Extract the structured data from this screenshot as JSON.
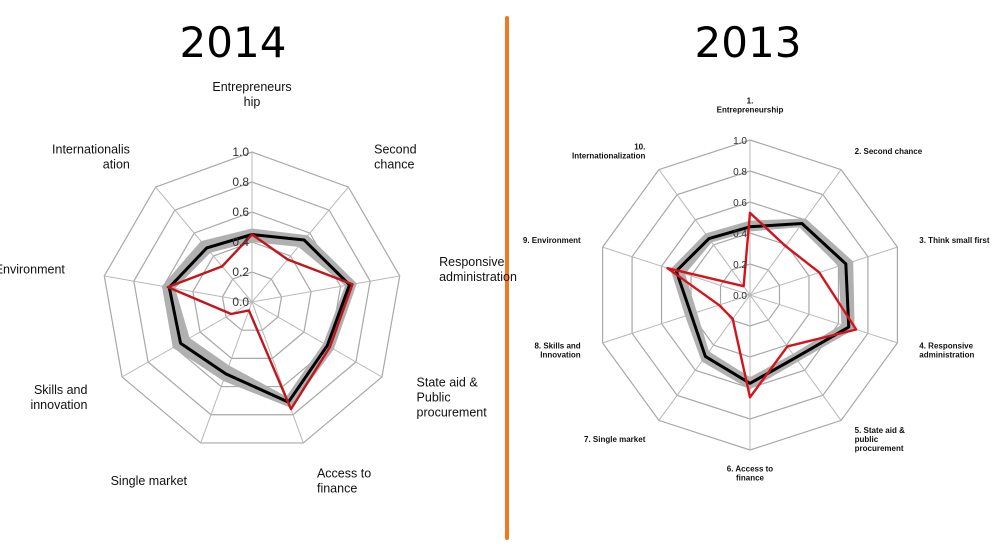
{
  "chart_data": [
    {
      "type": "radar",
      "title": "2014",
      "ticks": [
        "0.0",
        "0.2",
        "0.4",
        "0.6",
        "0.8",
        "1.0"
      ],
      "rlim": [
        0,
        1
      ],
      "axes": [
        [
          "Entrepreneurs",
          "hip"
        ],
        [
          "Second",
          "chance"
        ],
        [
          "Responsive",
          "administration"
        ],
        [
          "State aid &",
          "Public",
          "procurement"
        ],
        [
          "Access to",
          "finance"
        ],
        [
          "Single market"
        ],
        [
          "Skills and",
          "innovation"
        ],
        [
          "Environment"
        ],
        [
          "Internationalis",
          "ation"
        ]
      ],
      "series": [
        {
          "name": "",
          "color": "#b0b0b0",
          "style": "band",
          "lower": [
            0.4,
            0.48,
            0.63,
            0.55,
            0.67,
            0.45,
            0.48,
            0.52,
            0.43
          ],
          "upper": [
            0.49,
            0.58,
            0.71,
            0.63,
            0.75,
            0.56,
            0.61,
            0.61,
            0.53
          ]
        },
        {
          "name": "",
          "color": "#000000",
          "style": "line",
          "values": [
            0.45,
            0.54,
            0.66,
            0.58,
            0.71,
            0.51,
            0.55,
            0.56,
            0.47
          ]
        },
        {
          "name": "",
          "color": "#c0161c",
          "style": "line",
          "values": [
            0.45,
            0.37,
            0.68,
            0.6,
            0.76,
            0.06,
            0.16,
            0.57,
            0.31
          ]
        }
      ]
    },
    {
      "type": "radar",
      "title": "2013",
      "ticks": [
        "0.0",
        "0.2",
        "0.4",
        "0.6",
        "0.8",
        "1.0"
      ],
      "rlim": [
        0,
        1
      ],
      "axes": [
        [
          "1.",
          "Entrepreneurship"
        ],
        [
          "2. Second chance"
        ],
        [
          "3. Think small first"
        ],
        [
          "4. Responsive",
          "administration"
        ],
        [
          "5. State aid &",
          "public",
          "procurement"
        ],
        [
          "6. Access to",
          "finance"
        ],
        [
          "7. Single market"
        ],
        [
          "8. Skills and",
          "Innovation"
        ],
        [
          "9. Environment"
        ],
        [
          "10.",
          "Internationalization"
        ]
      ],
      "series": [
        {
          "name": "",
          "color": "#b0b0b0",
          "style": "band",
          "lower": [
            0.41,
            0.54,
            0.6,
            0.62,
            0.47,
            0.53,
            0.45,
            0.36,
            0.44,
            0.42
          ],
          "upper": [
            0.48,
            0.61,
            0.7,
            0.71,
            0.53,
            0.61,
            0.53,
            0.44,
            0.54,
            0.49
          ]
        },
        {
          "name": "",
          "color": "#000000",
          "style": "line",
          "values": [
            0.44,
            0.57,
            0.65,
            0.67,
            0.5,
            0.57,
            0.49,
            0.4,
            0.5,
            0.45
          ]
        },
        {
          "name": "",
          "color": "#d4141c",
          "style": "line",
          "values": [
            0.53,
            0.39,
            0.47,
            0.72,
            0.41,
            0.66,
            0.19,
            0.21,
            0.56,
            0.07
          ]
        }
      ]
    }
  ]
}
